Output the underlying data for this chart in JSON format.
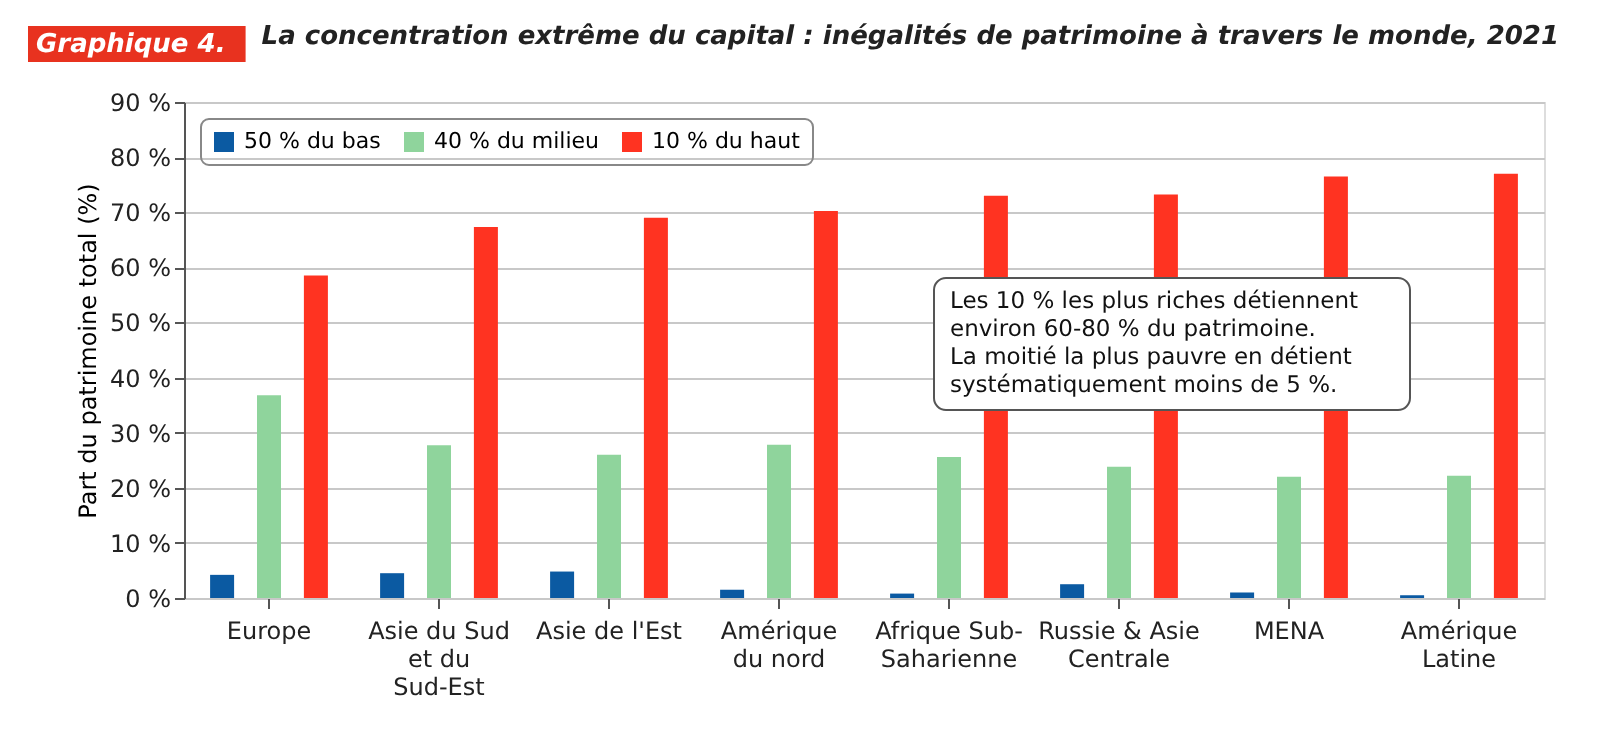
{
  "chart_data": {
    "type": "bar",
    "title": "La concentration extrême du capital : inégalités de patrimoine à travers le monde, 2021",
    "ylabel": "Part du patrimoine total (%)",
    "categories": [
      "Europe",
      "Asie du Sud\net du\nSud-Est",
      "Asie de l'Est",
      "Amérique\ndu nord",
      "Afrique Sub-\nSaharienne",
      "Russie & Asie\nCentrale",
      "MENA",
      "Amérique\nLatine"
    ],
    "series": [
      {
        "name": "50 % du bas",
        "color": "#0b5aa2",
        "values": [
          4.2,
          4.5,
          4.8,
          1.5,
          0.8,
          2.5,
          1.0,
          0.5
        ]
      },
      {
        "name": "40 % du milieu",
        "color": "#8fd49c",
        "values": [
          36.8,
          27.7,
          26.0,
          27.8,
          25.6,
          23.8,
          22.0,
          22.2
        ]
      },
      {
        "name": "10 % du haut",
        "color": "#ff3321",
        "values": [
          58.5,
          67.3,
          69.0,
          70.2,
          73.0,
          73.2,
          76.5,
          77.0
        ]
      }
    ],
    "ylim": [
      0,
      90
    ],
    "yticks": [
      {
        "value": 0,
        "label": "0 %"
      },
      {
        "value": 10,
        "label": "10 %"
      },
      {
        "value": 20,
        "label": "20 %"
      },
      {
        "value": 30,
        "label": "30 %"
      },
      {
        "value": 40,
        "label": "40 %"
      },
      {
        "value": 50,
        "label": "50 %"
      },
      {
        "value": 60,
        "label": "60 %"
      },
      {
        "value": 70,
        "label": "70 %"
      },
      {
        "value": 80,
        "label": "80 %"
      },
      {
        "value": 90,
        "label": "90 %"
      }
    ],
    "grid": "y",
    "legend": "top left",
    "annotations": [
      "Graphique 4.",
      "Les 10 % les plus riches détiennent\nenviron 60-80 % du patrimoine.\nLa moitié la plus pauvre en détient\nsystématiquement moins de 5 %."
    ]
  }
}
